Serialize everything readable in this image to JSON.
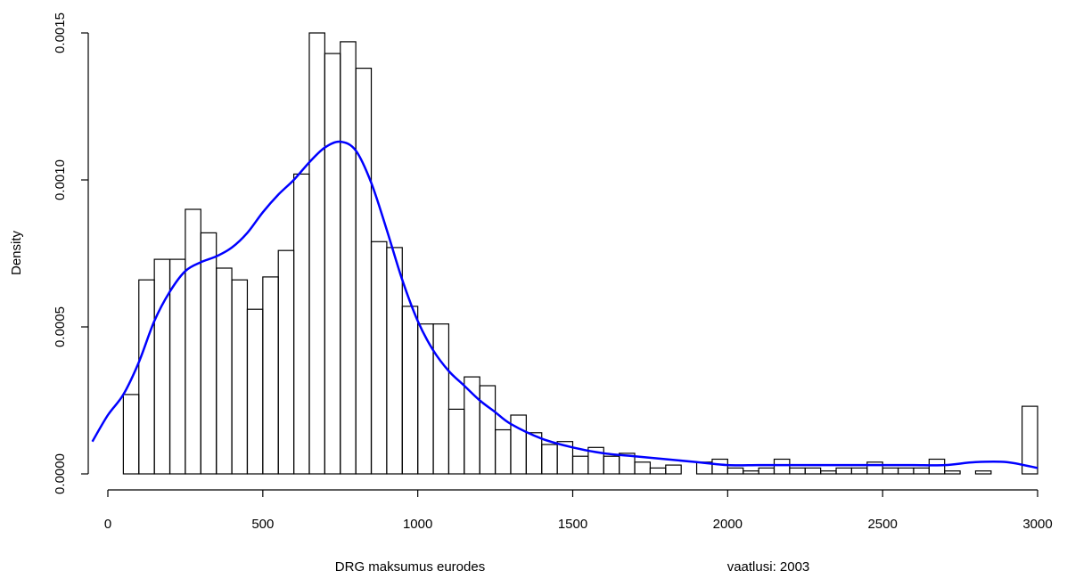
{
  "chart_data": {
    "type": "histogram",
    "xlabel": "DRG maksumus eurodes",
    "ylabel": "Density",
    "annotation": "vaatlusi: 2003",
    "xlim": [
      -50,
      3020
    ],
    "ylim": [
      0,
      0.0015
    ],
    "x_ticks": [
      0,
      500,
      1000,
      1500,
      2000,
      2500,
      3000
    ],
    "x_tick_labels": [
      "0",
      "500",
      "1000",
      "1500",
      "2000",
      "2500",
      "3000"
    ],
    "y_ticks": [
      0,
      0.0005,
      0.001,
      0.0015
    ],
    "y_tick_labels": [
      "0.0000",
      "0.0005",
      "0.0010",
      "0.0015"
    ],
    "bin_width": 50,
    "bins_start": 50,
    "densities": [
      0.00027,
      0.00066,
      0.00073,
      0.00073,
      0.0009,
      0.00082,
      0.0007,
      0.00066,
      0.00056,
      0.00067,
      0.00076,
      0.00102,
      0.0015,
      0.00143,
      0.00147,
      0.00138,
      0.00079,
      0.00077,
      0.00057,
      0.00051,
      0.00051,
      0.00022,
      0.00033,
      0.0003,
      0.00015,
      0.0002,
      0.00014,
      0.0001,
      0.00011,
      6e-05,
      9e-05,
      6e-05,
      7e-05,
      4e-05,
      2e-05,
      3e-05,
      0.0,
      4e-05,
      5e-05,
      2e-05,
      1e-05,
      2e-05,
      5e-05,
      2e-05,
      2e-05,
      1e-05,
      2e-05,
      2e-05,
      4e-05,
      2e-05,
      2e-05,
      2e-05,
      5e-05,
      1e-05,
      0.0,
      1e-05,
      0.0,
      0.0,
      0.00023
    ],
    "density_line_color": "#0000ff",
    "density_curve": {
      "x": [
        -50,
        0,
        50,
        100,
        150,
        200,
        250,
        300,
        350,
        400,
        450,
        500,
        550,
        600,
        650,
        700,
        750,
        800,
        850,
        900,
        950,
        1000,
        1050,
        1100,
        1150,
        1200,
        1250,
        1300,
        1400,
        1500,
        1600,
        1700,
        1800,
        1900,
        2000,
        2100,
        2200,
        2300,
        2400,
        2500,
        2600,
        2700,
        2800,
        2900,
        3000
      ],
      "y": [
        0.00011,
        0.0002,
        0.00027,
        0.00038,
        0.00052,
        0.00062,
        0.00069,
        0.00072,
        0.00074,
        0.00077,
        0.00082,
        0.00089,
        0.00095,
        0.001,
        0.00106,
        0.00111,
        0.00113,
        0.0011,
        0.00099,
        0.00083,
        0.00066,
        0.00052,
        0.00042,
        0.00035,
        0.0003,
        0.00025,
        0.00021,
        0.00017,
        0.00012,
        9e-05,
        7e-05,
        6e-05,
        5e-05,
        4e-05,
        3e-05,
        3e-05,
        3e-05,
        3e-05,
        3e-05,
        3e-05,
        3e-05,
        3e-05,
        4e-05,
        4e-05,
        2e-05
      ]
    }
  }
}
